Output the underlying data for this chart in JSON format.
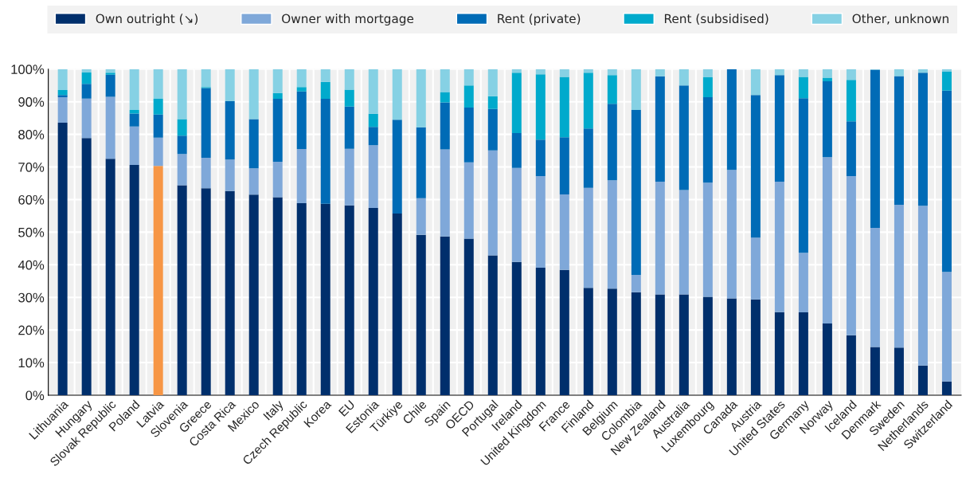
{
  "chart_data": {
    "type": "bar",
    "stacked": true,
    "categories": [
      "Lithuania",
      "Hungary",
      "Slovak Republic",
      "Poland",
      "Latvia",
      "Slovenia",
      "Greece",
      "Costa Rica",
      "Mexico",
      "Italy",
      "Czech Republic",
      "Korea",
      "EU",
      "Estonia",
      "Türkiye",
      "Chile",
      "Spain",
      "OECD",
      "Portugal",
      "Ireland",
      "United Kingdom",
      "France",
      "Finland",
      "Belgium",
      "Colombia",
      "New Zealand",
      "Australia",
      "Luxembourg",
      "Canada",
      "Austria",
      "United States",
      "Germany",
      "Norway",
      "Iceland",
      "Denmark",
      "Sweden",
      "Netherlands",
      "Switzerland"
    ],
    "series": [
      {
        "name": "Own outright (↘)",
        "color": "#002f6c",
        "colors": [
          "#002f6c",
          "#002f6c",
          "#002f6c",
          "#002f6c",
          "#f79645",
          "#002f6c",
          "#002f6c",
          "#002f6c",
          "#002f6c",
          "#002f6c",
          "#002f6c",
          "#002f6c",
          "#002f6c",
          "#002f6c",
          "#002f6c",
          "#002f6c",
          "#002f6c",
          "#002f6c",
          "#002f6c",
          "#002f6c",
          "#002f6c",
          "#002f6c",
          "#002f6c",
          "#002f6c",
          "#002f6c",
          "#002f6c",
          "#002f6c",
          "#002f6c",
          "#002f6c",
          "#002f6c",
          "#002f6c",
          "#002f6c",
          "#002f6c",
          "#002f6c",
          "#002f6c",
          "#002f6c",
          "#002f6c",
          "#002f6c"
        ],
        "values": [
          83.6,
          78.9,
          72.5,
          70.6,
          70.3,
          64.4,
          63.5,
          62.6,
          61.5,
          60.7,
          58.9,
          58.7,
          58.2,
          57.4,
          55.7,
          49.2,
          48.7,
          48.0,
          42.9,
          40.9,
          39.1,
          38.4,
          32.9,
          32.7,
          31.6,
          30.9,
          30.9,
          30.2,
          29.7,
          29.4,
          25.5,
          25.4,
          22.0,
          18.4,
          14.8,
          14.6,
          9.1,
          4.2
        ]
      },
      {
        "name": "Owner with mortgage",
        "color": "#7fa8d9",
        "values": [
          7.8,
          12.1,
          19.0,
          11.8,
          8.7,
          9.6,
          9.3,
          9.7,
          8.1,
          10.9,
          16.6,
          0,
          17.4,
          19.3,
          0,
          11.2,
          26.7,
          23.4,
          32.2,
          28.8,
          28.1,
          23.2,
          30.7,
          33.2,
          5.3,
          34.6,
          32.0,
          35.0,
          39.4,
          18.9,
          40.0,
          18.3,
          51.0,
          48.8,
          36.5,
          43.8,
          49.0,
          33.6
        ]
      },
      {
        "name": "Rent (private)",
        "color": "#006bb6",
        "values": [
          0.7,
          4.5,
          6.8,
          4.0,
          7.1,
          5.6,
          21.4,
          17.9,
          15.1,
          19.3,
          17.7,
          32.2,
          12.9,
          5.6,
          28.8,
          21.8,
          14.4,
          16.8,
          12.7,
          10.7,
          11.2,
          17.5,
          18.2,
          23.5,
          50.6,
          32.3,
          32.1,
          26.2,
          30.9,
          43.8,
          32.7,
          47.4,
          23.3,
          16.8,
          48.5,
          39.5,
          40.8,
          55.6
        ]
      },
      {
        "name": "Rent (subsidised)",
        "color": "#00aacc",
        "values": [
          1.5,
          3.5,
          0.6,
          1.1,
          4.8,
          5.1,
          0.3,
          0,
          0,
          1.8,
          1.3,
          5.2,
          5.2,
          4.0,
          0,
          0,
          3.2,
          6.8,
          3.9,
          18.5,
          20.0,
          18.5,
          17.1,
          8.8,
          0,
          0,
          0,
          6.1,
          0,
          0,
          0,
          6.5,
          1.1,
          12.7,
          0,
          0,
          0,
          5.8
        ]
      },
      {
        "name": "Other, unknown",
        "color": "#86d1e4",
        "values": [
          6.4,
          1.0,
          1.1,
          12.5,
          9.1,
          15.3,
          5.5,
          9.8,
          15.3,
          7.3,
          5.5,
          3.9,
          6.3,
          13.7,
          15.5,
          17.8,
          7.0,
          5.0,
          8.3,
          1.1,
          1.6,
          2.4,
          1.1,
          1.8,
          12.5,
          2.2,
          5.0,
          2.5,
          0,
          7.9,
          1.8,
          2.4,
          2.6,
          3.3,
          0.2,
          2.1,
          1.1,
          0.8
        ]
      }
    ],
    "ylim": [
      0,
      100
    ],
    "yticks": [
      {
        "value": 0,
        "label": "0%"
      },
      {
        "value": 10,
        "label": "10%"
      },
      {
        "value": 20,
        "label": "20%"
      },
      {
        "value": 30,
        "label": "30%"
      },
      {
        "value": 40,
        "label": "40%"
      },
      {
        "value": 50,
        "label": "50%"
      },
      {
        "value": 60,
        "label": "60%"
      },
      {
        "value": 70,
        "label": "70%"
      },
      {
        "value": 80,
        "label": "80%"
      },
      {
        "value": 90,
        "label": "90%"
      },
      {
        "value": 100,
        "label": "100%"
      }
    ],
    "grid": true,
    "legend": "top"
  }
}
